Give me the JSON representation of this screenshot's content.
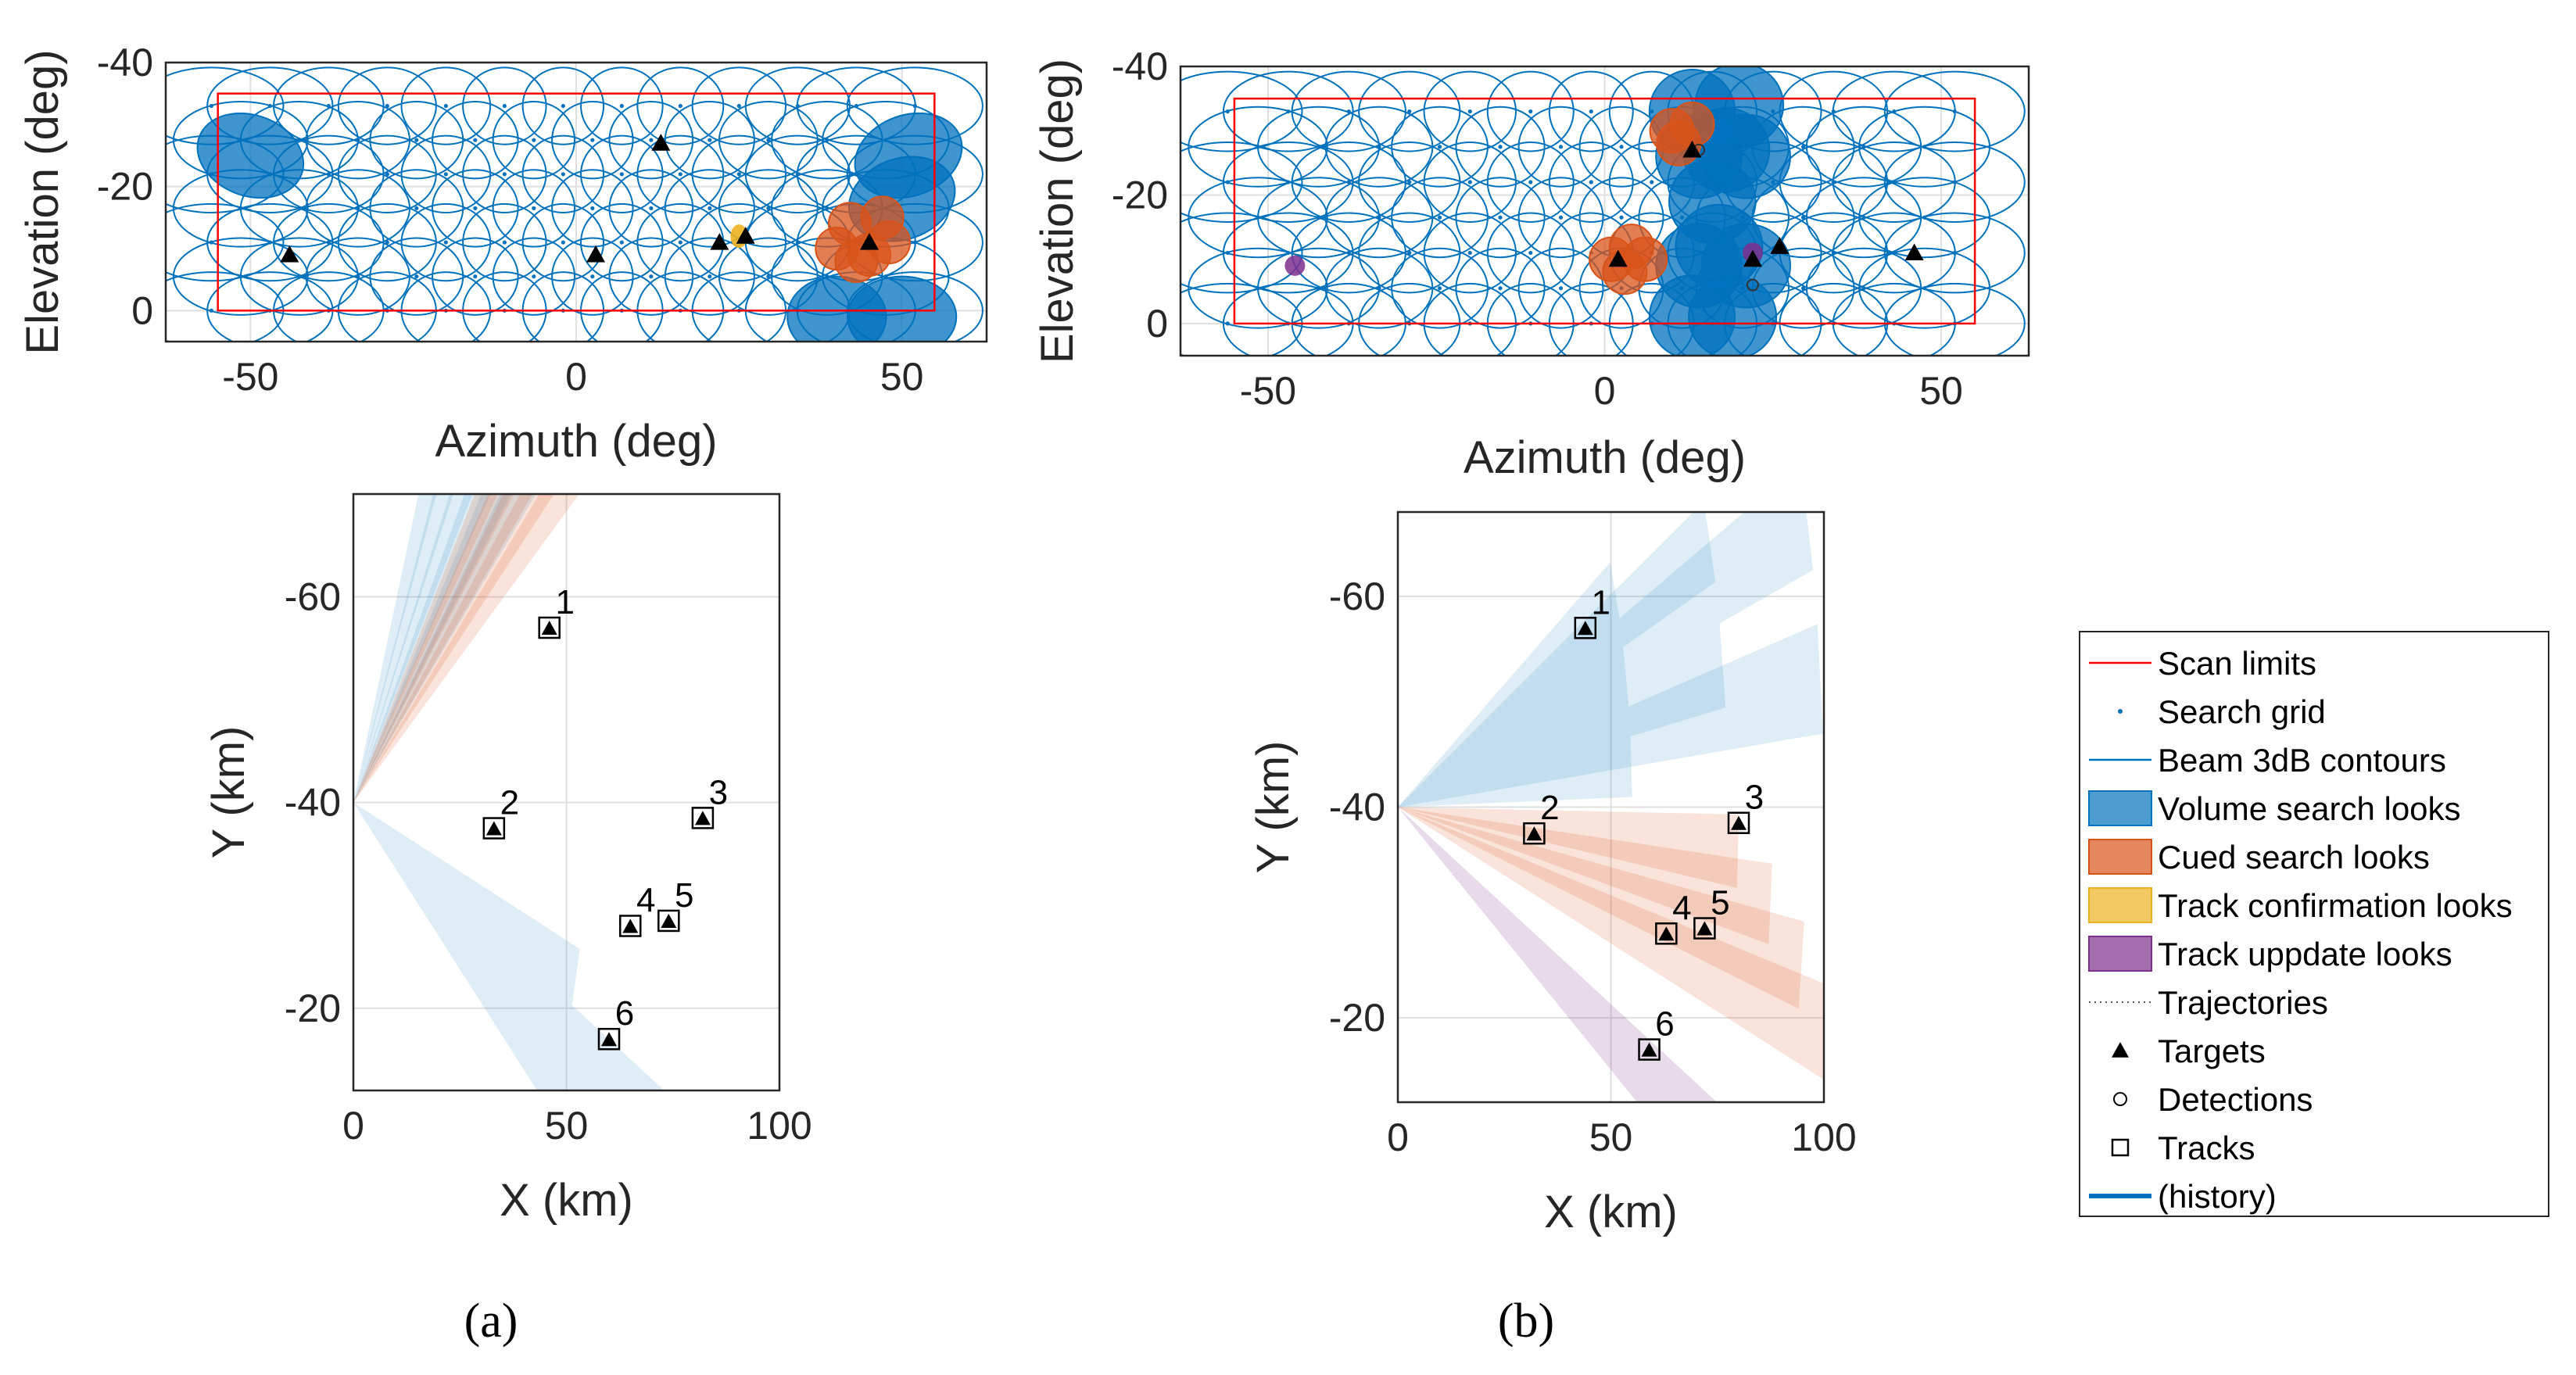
{
  "chart_data": [
    {
      "id": "a_top",
      "type": "scatter",
      "xlabel": "Azimuth (deg)",
      "ylabel": "Elevation (deg)",
      "xlim": [
        -63,
        63
      ],
      "ylim": [
        -40,
        5
      ],
      "ylim_reversed": true,
      "xticks": [
        -50,
        0,
        50
      ],
      "yticks": [
        -40,
        -20,
        0
      ],
      "scan_limits": {
        "az": [
          -55,
          55
        ],
        "el": [
          -35,
          0
        ]
      },
      "beam_radius_deg": 6.2,
      "volume_looks": [
        [
          -50,
          -25
        ],
        [
          51,
          -25
        ],
        [
          50,
          -18
        ],
        [
          40,
          1
        ],
        [
          50,
          1
        ]
      ],
      "cued_looks": [
        [
          42,
          -14
        ],
        [
          47,
          -15
        ],
        [
          40,
          -10
        ],
        [
          45,
          -9
        ],
        [
          48,
          -11
        ],
        [
          43,
          -8
        ]
      ],
      "confirm_looks": [
        [
          25,
          -12
        ]
      ],
      "targets": [
        [
          -44,
          -9
        ],
        [
          3,
          -9
        ],
        [
          13,
          -27
        ],
        [
          22,
          -11
        ],
        [
          26,
          -12
        ],
        [
          45,
          -11
        ]
      ]
    },
    {
      "id": "b_top",
      "type": "scatter",
      "xlabel": "Azimuth (deg)",
      "ylabel": "Elevation (deg)",
      "xlim": [
        -63,
        63
      ],
      "ylim": [
        -40,
        5
      ],
      "ylim_reversed": true,
      "xticks": [
        -50,
        0,
        50
      ],
      "yticks": [
        -40,
        -20,
        0
      ],
      "scan_limits": {
        "az": [
          -55,
          55
        ],
        "el": [
          -35,
          0
        ]
      },
      "beam_radius_deg": 6.2,
      "volume_looks": [
        [
          13,
          -33
        ],
        [
          20,
          -34
        ],
        [
          18,
          -27
        ],
        [
          14,
          -26
        ],
        [
          21,
          -26
        ],
        [
          16,
          -19
        ],
        [
          17,
          -12
        ],
        [
          14,
          -9
        ],
        [
          21,
          -9
        ],
        [
          13,
          -1
        ],
        [
          19,
          -1
        ]
      ],
      "cued_looks": [
        [
          11,
          -28
        ],
        [
          13,
          -31
        ],
        [
          10,
          -30
        ],
        [
          1,
          -10
        ],
        [
          4,
          -12
        ],
        [
          3,
          -8
        ],
        [
          6,
          -10
        ]
      ],
      "update_looks": [
        [
          -46,
          -9
        ],
        [
          22,
          -11
        ]
      ],
      "targets": [
        [
          2,
          -10
        ],
        [
          13,
          -27
        ],
        [
          22,
          -10
        ],
        [
          26,
          -12
        ],
        [
          46,
          -11
        ]
      ],
      "detections": [
        [
          22,
          -6
        ],
        [
          14,
          -27
        ]
      ]
    },
    {
      "id": "a_bottom",
      "type": "scatter",
      "xlabel": "X (km)",
      "ylabel": "Y (km)",
      "xlim": [
        0,
        100
      ],
      "ylim": [
        -70,
        -12
      ],
      "ylim_reversed": true,
      "xticks": [
        0,
        50,
        100
      ],
      "yticks": [
        -60,
        -40,
        -20
      ],
      "radar": [
        0,
        -40
      ],
      "tracks": [
        {
          "id": "1",
          "x": 46,
          "y": -57
        },
        {
          "id": "2",
          "x": 33,
          "y": -37.5
        },
        {
          "id": "3",
          "x": 82,
          "y": -38.5
        },
        {
          "id": "4",
          "x": 65,
          "y": -28
        },
        {
          "id": "5",
          "x": 74,
          "y": -28.5
        },
        {
          "id": "6",
          "x": 60,
          "y": -17
        }
      ],
      "volume_beam_az": [
        -60,
        -55,
        -50,
        -46,
        -42,
        -38,
        18,
        24,
        30
      ],
      "cued_beam_az": [
        -44,
        -41,
        -38,
        -35,
        -32
      ],
      "beam_range_km": 100
    },
    {
      "id": "b_bottom",
      "type": "scatter",
      "xlabel": "X (km)",
      "ylabel": "Y (km)",
      "xlim": [
        0,
        100
      ],
      "ylim": [
        -68,
        -12
      ],
      "ylim_reversed": true,
      "xticks": [
        0,
        50,
        100
      ],
      "yticks": [
        -60,
        -40,
        -20
      ],
      "radar": [
        0,
        -40
      ],
      "tracks": [
        {
          "id": "1",
          "x": 44,
          "y": -57
        },
        {
          "id": "2",
          "x": 32,
          "y": -37.5
        },
        {
          "id": "3",
          "x": 80,
          "y": -38.5
        },
        {
          "id": "4",
          "x": 63,
          "y": -28
        },
        {
          "id": "5",
          "x": 72,
          "y": -28.5
        },
        {
          "id": "6",
          "x": 59,
          "y": -17
        }
      ],
      "volume_beam_az": [
        -22,
        -19,
        -16,
        -13,
        -10,
        -7,
        -4
      ],
      "cued_beam_az": [
        3,
        6,
        9,
        12
      ],
      "update_beam_az": [
        22,
        25
      ],
      "beam_range_km": 100
    }
  ],
  "legend": {
    "items": [
      {
        "label": "Scan limits",
        "kind": "line",
        "color": "#ff0000"
      },
      {
        "label": "Search grid",
        "kind": "dot",
        "color": "#0072bd"
      },
      {
        "label": "Beam 3dB contours",
        "kind": "line",
        "color": "#0072bd"
      },
      {
        "label": "Volume search looks",
        "kind": "patch",
        "color": "#0072bd"
      },
      {
        "label": "Cued search looks",
        "kind": "patch",
        "color": "#d95319"
      },
      {
        "label": "Track confirmation looks",
        "kind": "patch",
        "color": "#edb120"
      },
      {
        "label": "Track uppdate looks",
        "kind": "patch",
        "color": "#7e2f8e"
      },
      {
        "label": "Trajectories",
        "kind": "dotted",
        "color": "#555555"
      },
      {
        "label": "Targets",
        "kind": "triangle",
        "color": "#000000"
      },
      {
        "label": "Detections",
        "kind": "circle",
        "color": "#000000"
      },
      {
        "label": "Tracks",
        "kind": "square",
        "color": "#000000"
      },
      {
        "label": "(history)",
        "kind": "thickline",
        "color": "#0072bd"
      }
    ]
  },
  "captions": {
    "a": "(a)",
    "b": "(b)"
  },
  "colors": {
    "volume": "#0072bd",
    "cued": "#d95319",
    "confirm": "#edb120",
    "update": "#7e2f8e",
    "scan": "#ff0000",
    "beam": "#0072bd"
  }
}
